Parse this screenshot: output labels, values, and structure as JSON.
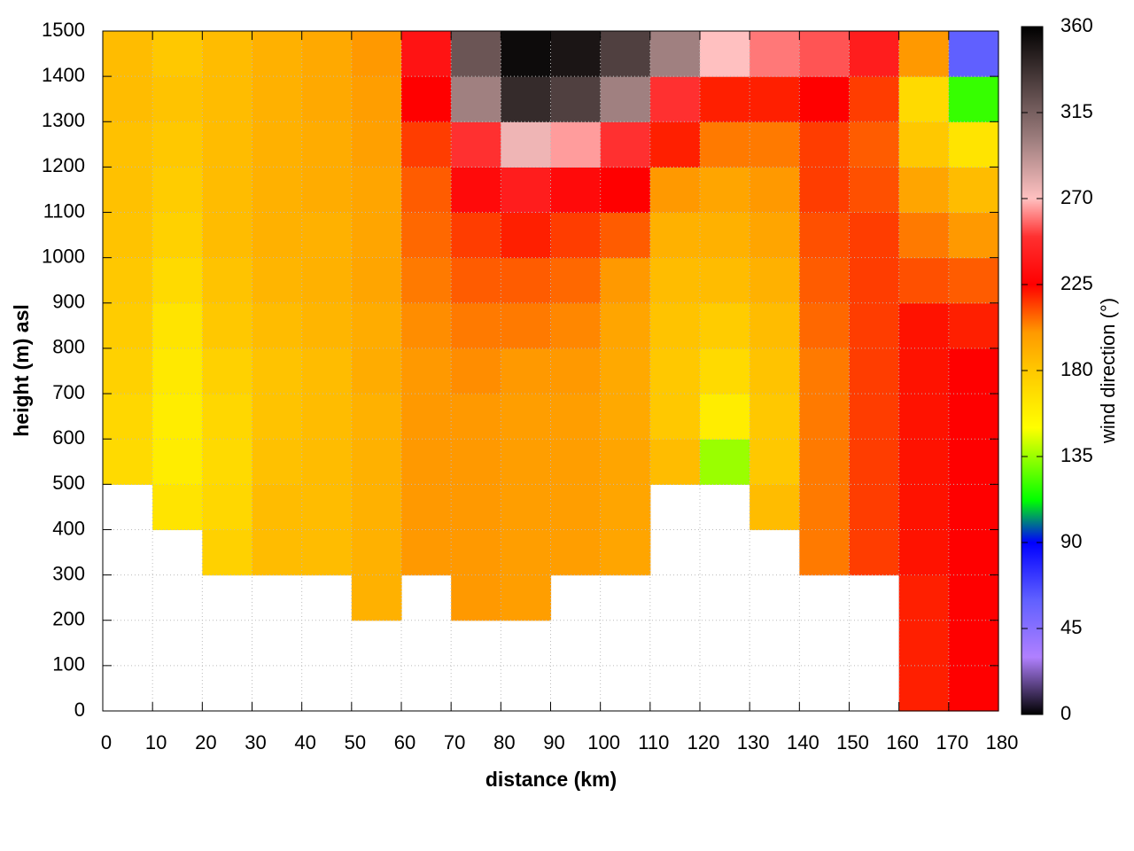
{
  "chart_data": {
    "type": "heatmap",
    "xlabel": "distance (km)",
    "ylabel": "height (m) asl",
    "colorbar_label": "wind direction (°)",
    "x": [
      5,
      15,
      25,
      35,
      45,
      55,
      65,
      75,
      85,
      95,
      105,
      115,
      125,
      135,
      145,
      155,
      165,
      175
    ],
    "y": [
      50,
      150,
      250,
      350,
      450,
      550,
      650,
      750,
      850,
      950,
      1050,
      1150,
      1250,
      1350,
      1450
    ],
    "z": [
      [
        null,
        null,
        null,
        null,
        null,
        170,
        172,
        175,
        178,
        180,
        182,
        183,
        183,
        185,
        185
      ],
      [
        null,
        null,
        null,
        null,
        165,
        160,
        160,
        162,
        165,
        170,
        175,
        178,
        180,
        182,
        180
      ],
      [
        null,
        null,
        null,
        175,
        172,
        170,
        172,
        175,
        180,
        182,
        185,
        185,
        185,
        185,
        185
      ],
      [
        null,
        null,
        null,
        185,
        185,
        183,
        182,
        182,
        185,
        188,
        190,
        190,
        190,
        190,
        190
      ],
      [
        null,
        null,
        null,
        185,
        185,
        185,
        185,
        185,
        188,
        190,
        190,
        192,
        192,
        193,
        193
      ],
      [
        null,
        null,
        190,
        190,
        190,
        190,
        190,
        192,
        192,
        195,
        195,
        195,
        197,
        198,
        200
      ],
      [
        null,
        null,
        null,
        200,
        200,
        200,
        200,
        200,
        202,
        205,
        208,
        210,
        215,
        225,
        235
      ],
      [
        null,
        null,
        200,
        200,
        200,
        200,
        200,
        202,
        205,
        210,
        215,
        230,
        250,
        300,
        320
      ],
      [
        null,
        null,
        198,
        198,
        198,
        198,
        198,
        200,
        205,
        210,
        220,
        240,
        275,
        340,
        355
      ],
      [
        null,
        null,
        null,
        198,
        198,
        198,
        198,
        200,
        203,
        208,
        215,
        230,
        265,
        330,
        350
      ],
      [
        null,
        null,
        null,
        195,
        195,
        195,
        193,
        193,
        195,
        200,
        210,
        225,
        250,
        300,
        330
      ],
      [
        null,
        null,
        null,
        null,
        null,
        185,
        180,
        180,
        182,
        185,
        190,
        200,
        220,
        250,
        300
      ],
      [
        null,
        null,
        null,
        null,
        null,
        135,
        160,
        170,
        178,
        185,
        190,
        195,
        205,
        220,
        270
      ],
      [
        null,
        null,
        null,
        null,
        185,
        180,
        180,
        182,
        185,
        190,
        195,
        200,
        205,
        220,
        260
      ],
      [
        null,
        null,
        null,
        205,
        205,
        205,
        205,
        205,
        208,
        210,
        212,
        215,
        215,
        225,
        255
      ],
      [
        null,
        null,
        null,
        215,
        215,
        215,
        215,
        215,
        215,
        215,
        215,
        212,
        210,
        215,
        240
      ],
      [
        220,
        220,
        220,
        222,
        222,
        222,
        222,
        222,
        222,
        212,
        205,
        195,
        180,
        170,
        200
      ],
      [
        225,
        225,
        225,
        225,
        225,
        225,
        225,
        225,
        220,
        210,
        200,
        185,
        165,
        120,
        60
      ]
    ],
    "cell_width": 10,
    "cell_height": 100,
    "xlim": [
      0,
      180
    ],
    "xticks": [
      0,
      10,
      20,
      30,
      40,
      50,
      60,
      70,
      80,
      90,
      100,
      110,
      120,
      130,
      140,
      150,
      160,
      170,
      180
    ],
    "ylim": [
      0,
      1500
    ],
    "yticks": [
      0,
      100,
      200,
      300,
      400,
      500,
      600,
      700,
      800,
      900,
      1000,
      1100,
      1200,
      1300,
      1400,
      1500
    ],
    "zlim": [
      0,
      360
    ],
    "zticks": [
      0,
      45,
      90,
      135,
      180,
      225,
      270,
      315,
      360
    ],
    "colorscale": [
      [
        0,
        "#000000"
      ],
      [
        30,
        "#b080ff"
      ],
      [
        60,
        "#6060ff"
      ],
      [
        90,
        "#0000ff"
      ],
      [
        112,
        "#00ff00"
      ],
      [
        150,
        "#ffff00"
      ],
      [
        180,
        "#ffc800"
      ],
      [
        200,
        "#ff9900"
      ],
      [
        225,
        "#ff0000"
      ],
      [
        250,
        "#ff3030"
      ],
      [
        270,
        "#ffc0c0"
      ],
      [
        300,
        "#a08080"
      ],
      [
        360,
        "#000000"
      ]
    ],
    "grid": true
  }
}
